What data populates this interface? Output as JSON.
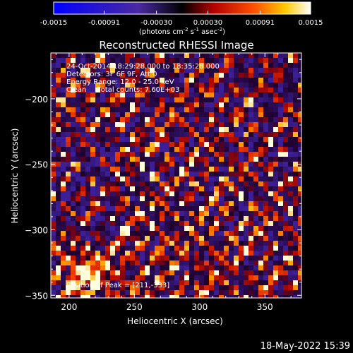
{
  "chart_data": {
    "type": "heatmap",
    "title": "Reconstructed RHESSI Image",
    "xlabel": "Heliocentric X (arcsec)",
    "ylabel": "Heliocentric Y (arcsec)",
    "xlim": [
      186,
      378
    ],
    "ylim": [
      -352,
      -165
    ],
    "x_ticks": [
      200,
      250,
      300,
      350
    ],
    "y_ticks": [
      -200,
      -250,
      -300,
      -350
    ],
    "colorbar": {
      "ticks": [
        "-0.0015",
        "-0.00091",
        "-0.00030",
        "0.00030",
        "0.00091",
        "0.0015"
      ],
      "label_main": "(photons cm",
      "label_sup1": "-2",
      "label_mid1": " s",
      "label_sup2": "-1",
      "label_mid2": " asec",
      "label_sup3": "-2",
      "label_end": ")"
    },
    "annotations": [
      "24-Oct-2014 18:29:28.000 to 18:35:28.000",
      "Detectors: 3F 6F 9F, Att 0",
      "Energy Range: 12.0 - 25.0 keV",
      "Clean     Total counts: 7.60E+03"
    ],
    "peak_label": "Position of Peak = [211,-333]",
    "peak": [
      211,
      -333
    ],
    "timestamp": "18-May-2022 15:39",
    "colors": {
      "neg": "#2020ff",
      "pos_hot": "#ffffff",
      "mid": "#ff4000"
    }
  }
}
